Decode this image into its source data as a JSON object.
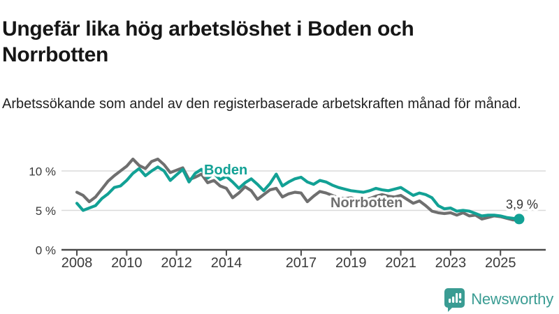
{
  "header": {
    "title": "Ungefär lika hög arbetslöshet i Boden och Norrbotten",
    "subtitle": "Arbetssökande som andel av den registerbaserade arbetskraften månad för månad."
  },
  "chart_data": {
    "type": "line",
    "title": "Ungefär lika hög arbetslöshet i Boden och Norrbotten",
    "subtitle": "Arbetssökande som andel av den registerbaserade arbetskraften månad för månad.",
    "unit": "%",
    "x_unit": "year (quarterly samples)",
    "x": [
      2008,
      2008.25,
      2008.5,
      2008.75,
      2009,
      2009.25,
      2009.5,
      2009.75,
      2010,
      2010.25,
      2010.5,
      2010.75,
      2011,
      2011.25,
      2011.5,
      2011.75,
      2012,
      2012.25,
      2012.5,
      2012.75,
      2013,
      2013.25,
      2013.5,
      2013.75,
      2014,
      2014.25,
      2014.5,
      2014.75,
      2015,
      2015.25,
      2015.5,
      2015.75,
      2016,
      2016.25,
      2016.5,
      2016.75,
      2017,
      2017.25,
      2017.5,
      2017.75,
      2018,
      2018.25,
      2018.5,
      2018.75,
      2019,
      2019.25,
      2019.5,
      2019.75,
      2020,
      2020.25,
      2020.5,
      2020.75,
      2021,
      2021.25,
      2021.5,
      2021.75,
      2022,
      2022.25,
      2022.5,
      2022.75,
      2023,
      2023.25,
      2023.5,
      2023.75,
      2024,
      2024.25,
      2024.5,
      2024.75,
      2025,
      2025.25,
      2025.5,
      2025.75
    ],
    "series": [
      {
        "name": "Norrbotten",
        "color": "#6f6f6f",
        "values": [
          7.3,
          6.9,
          6.1,
          6.7,
          7.7,
          8.7,
          9.4,
          10.0,
          10.6,
          11.5,
          10.7,
          10.3,
          11.2,
          11.5,
          10.8,
          9.8,
          10.1,
          10.4,
          8.9,
          9.2,
          9.6,
          8.5,
          8.8,
          8.1,
          7.8,
          6.6,
          7.2,
          8.0,
          7.5,
          6.4,
          7.0,
          7.6,
          7.8,
          6.7,
          7.1,
          7.3,
          7.2,
          6.1,
          6.8,
          7.4,
          7.2,
          6.9,
          6.6,
          6.5,
          6.6,
          6.4,
          6.3,
          6.5,
          6.8,
          7.0,
          6.8,
          6.7,
          6.9,
          6.4,
          5.9,
          6.2,
          5.6,
          4.9,
          4.7,
          4.6,
          4.7,
          4.4,
          4.7,
          4.3,
          4.4,
          3.9,
          4.1,
          4.3,
          4.2,
          4.0,
          3.8,
          3.8
        ]
      },
      {
        "name": "Boden",
        "color": "#12a195",
        "end_marker": true,
        "values": [
          5.9,
          5.0,
          5.3,
          5.6,
          6.5,
          7.1,
          7.9,
          8.1,
          8.8,
          9.7,
          10.3,
          9.4,
          10.0,
          10.5,
          10.0,
          8.8,
          9.5,
          10.2,
          8.6,
          9.7,
          10.2,
          9.1,
          9.7,
          8.9,
          9.3,
          8.6,
          7.8,
          8.5,
          9.0,
          8.3,
          7.5,
          8.4,
          9.6,
          8.1,
          8.6,
          9.0,
          9.2,
          8.6,
          8.3,
          8.8,
          8.6,
          8.2,
          7.9,
          7.7,
          7.5,
          7.4,
          7.3,
          7.5,
          7.8,
          7.6,
          7.5,
          7.7,
          7.9,
          7.4,
          6.9,
          7.2,
          7.0,
          6.6,
          5.6,
          5.2,
          5.3,
          4.9,
          5.0,
          4.9,
          4.6,
          4.3,
          4.4,
          4.4,
          4.3,
          4.1,
          4.0,
          3.9
        ]
      }
    ],
    "end_label": "3,9 %",
    "series_labels": [
      {
        "text": "Boden",
        "color": "#12a195"
      },
      {
        "text": "Norrbotten",
        "color": "#6f6f6f"
      }
    ],
    "yticks": [
      {
        "value": 0,
        "label": "0 %"
      },
      {
        "value": 5,
        "label": "5 %"
      },
      {
        "value": 10,
        "label": "10 %"
      }
    ],
    "xticks": [
      {
        "value": 2008,
        "label": "2008"
      },
      {
        "value": 2010,
        "label": "2010"
      },
      {
        "value": 2012,
        "label": "2012"
      },
      {
        "value": 2014,
        "label": "2014"
      },
      {
        "value": 2017,
        "label": "2017"
      },
      {
        "value": 2019,
        "label": "2019"
      },
      {
        "value": 2021,
        "label": "2021"
      },
      {
        "value": 2023,
        "label": "2023"
      },
      {
        "value": 2025,
        "label": "2025"
      }
    ],
    "ylim": [
      0,
      12.6
    ],
    "xlim": [
      2007.7,
      2026.3
    ],
    "grid": "horizontal",
    "legend": "inline-labels"
  },
  "branding": {
    "logo_text": "Newsworthy",
    "logo_color": "#3a9c93",
    "logo_icon": "bar-chart-speech-bubble"
  }
}
